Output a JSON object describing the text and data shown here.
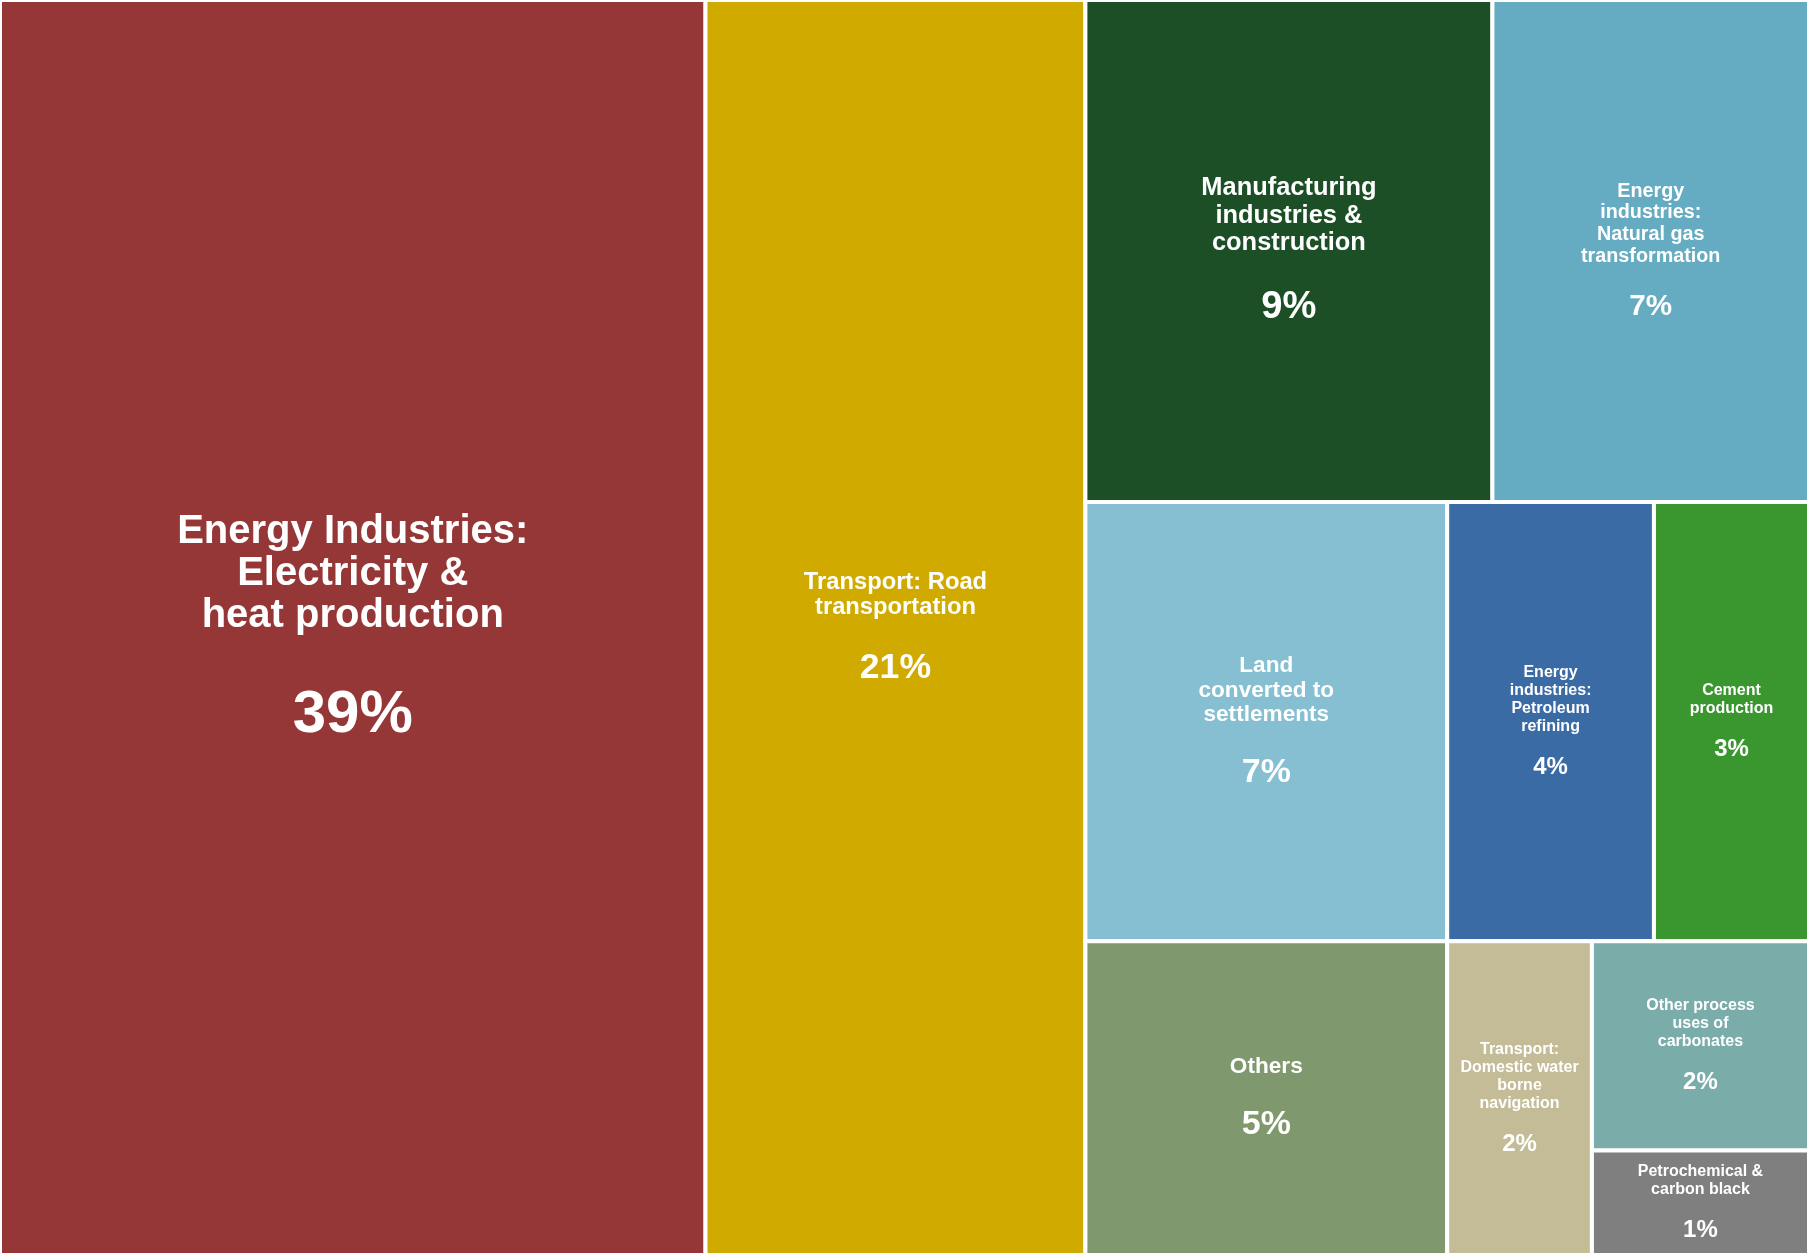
{
  "chart_data": {
    "type": "other",
    "categories": [
      "Energy Industries:\nElectricity &\nheat production",
      "Transport: Road\ntransportation",
      "Manufacturing\nindustries &\nconstruction",
      "Energy\nindustries:\nNatural gas\ntransformation",
      "Land\nconverted to\nsettlements",
      "Energy\nindustries:\nPetroleum\nrefining",
      "Cement\nproduction",
      "Others",
      "Transport:\nDomestic water\nborne\nnavigation",
      "Other process\nuses of\ncarbonates",
      "Petrochemical &\ncarbon black"
    ],
    "values": [
      39,
      21,
      9,
      7,
      7,
      4,
      3,
      5,
      2,
      2,
      1
    ],
    "value_labels": [
      "39%",
      "21%",
      "9%",
      "7%",
      "7%",
      "4%",
      "3%",
      "5%",
      "2%",
      "2%",
      "1%"
    ],
    "colors": [
      "#943736",
      "#d1aa00",
      "#1d4f27",
      "#65abc2",
      "#86bfd1",
      "#3b6ba5",
      "#3a962f",
      "#80986d",
      "#c4bc96",
      "#7aadaa",
      "#7f7f7f"
    ]
  }
}
